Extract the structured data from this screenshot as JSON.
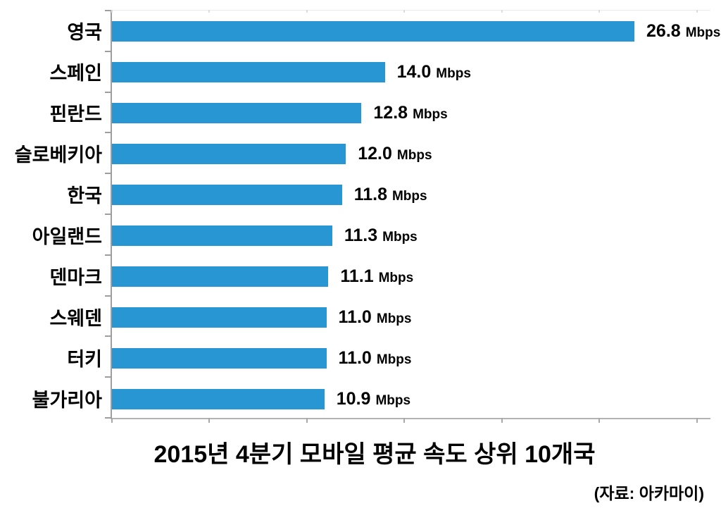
{
  "chart_data": {
    "type": "bar",
    "orientation": "horizontal",
    "title": "2015년 4분기 모바일 평균 속도 상위 10개국",
    "source": "(자료: 아카마이)",
    "unit": "Mbps",
    "categories": [
      "영국",
      "스페인",
      "핀란드",
      "슬로베키아",
      "한국",
      "아일랜드",
      "덴마크",
      "스웨덴",
      "터키",
      "불가리아"
    ],
    "values": [
      26.8,
      14.0,
      12.8,
      12.0,
      11.8,
      11.3,
      11.1,
      11.0,
      11.0,
      10.9
    ],
    "value_labels": [
      "26.8",
      "14.0",
      "12.8",
      "12.0",
      "11.8",
      "11.3",
      "11.1",
      "11.0",
      "11.0",
      "10.9"
    ],
    "xlim": [
      0,
      30.7
    ],
    "x_ticks": [
      0,
      5,
      10,
      15,
      20,
      25,
      30
    ],
    "grid": false,
    "legend": false,
    "bar_color": "#2896D3",
    "axis_color": "#9e9e9e"
  }
}
